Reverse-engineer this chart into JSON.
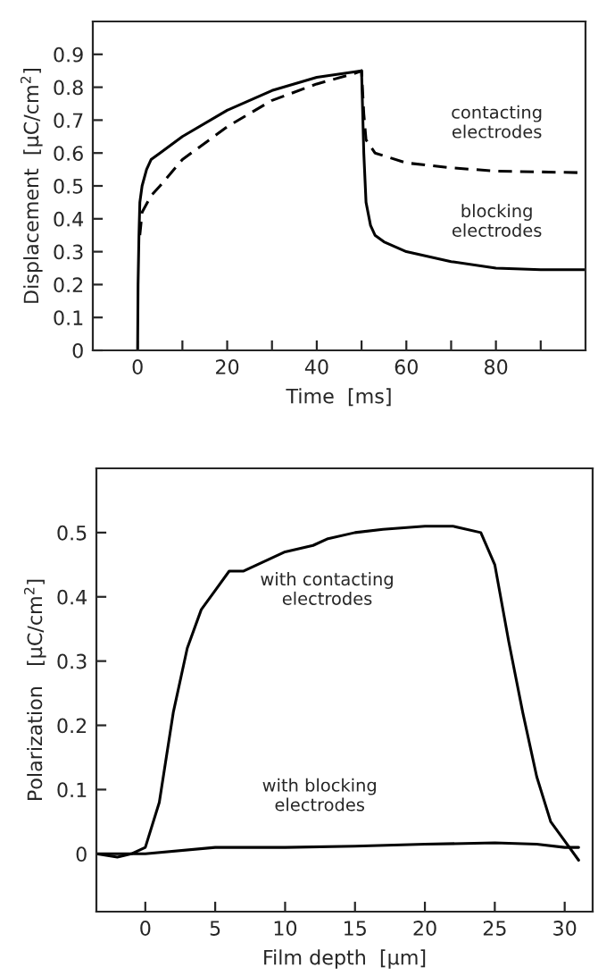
{
  "chart_data": [
    {
      "type": "line",
      "xlabel": "Time  [ms]",
      "ylabel": "Displacement  [μC/cm$^{2}$]",
      "xlim": [
        -10,
        100
      ],
      "ylim": [
        0,
        1.0
      ],
      "xticks": [
        0,
        {
          "value": 10,
          "label": null
        },
        20,
        {
          "value": 30,
          "label": null
        },
        40,
        {
          "value": 50,
          "label": null
        },
        60,
        {
          "value": 70,
          "label": null
        },
        80,
        {
          "value": 90,
          "label": null
        }
      ],
      "yticks": [
        0,
        0.1,
        0.2,
        0.3,
        0.4,
        0.5,
        0.6,
        0.7,
        0.8,
        0.9
      ],
      "grid": false,
      "legend": false,
      "series": [
        {
          "color": "#000000",
          "line_style": "solid",
          "x": [
            0,
            0.1,
            0.3,
            0.5,
            1,
            2,
            3,
            5,
            10,
            20,
            30,
            40,
            50,
            50.5,
            51,
            52,
            53,
            55,
            60,
            70,
            80,
            90,
            100
          ],
          "values": [
            0,
            0.2,
            0.35,
            0.45,
            0.5,
            0.55,
            0.58,
            0.6,
            0.65,
            0.73,
            0.79,
            0.83,
            0.85,
            0.6,
            0.45,
            0.38,
            0.35,
            0.33,
            0.3,
            0.27,
            0.25,
            0.245,
            0.245
          ]
        },
        {
          "color": "#000000",
          "line_style": "dashed",
          "x": [
            0.5,
            1,
            3,
            5,
            10,
            20,
            30,
            40,
            48,
            50,
            50.5,
            51,
            53,
            60,
            70,
            80,
            100
          ],
          "values": [
            0.35,
            0.42,
            0.47,
            0.5,
            0.58,
            0.68,
            0.76,
            0.81,
            0.84,
            0.85,
            0.72,
            0.64,
            0.6,
            0.57,
            0.555,
            0.545,
            0.54
          ]
        }
      ],
      "annotations": [
        "contacting\nelectrodes",
        "blocking\nelectrodes"
      ]
    },
    {
      "type": "line",
      "xlabel": "Film depth  [μm]",
      "ylabel": "Polarization   [μC/cm$^{2}$]",
      "xlim": [
        -3.5,
        32
      ],
      "ylim": [
        -0.09,
        0.6
      ],
      "xticks": [
        0,
        5,
        10,
        15,
        20,
        25,
        30
      ],
      "yticks": [
        0,
        0.1,
        0.2,
        0.3,
        0.4,
        0.5
      ],
      "grid": false,
      "legend": false,
      "series": [
        {
          "color": "#000000",
          "line_style": "solid",
          "x": [
            -3.5,
            -2,
            -1,
            0,
            1,
            2,
            3,
            4,
            5,
            6,
            7,
            8,
            10,
            12,
            13,
            15,
            17,
            20,
            22,
            24,
            25,
            26,
            27,
            28,
            29,
            30,
            31
          ],
          "values": [
            0,
            -0.005,
            0,
            0.01,
            0.08,
            0.22,
            0.32,
            0.38,
            0.41,
            0.44,
            0.44,
            0.45,
            0.47,
            0.48,
            0.49,
            0.5,
            0.505,
            0.51,
            0.51,
            0.5,
            0.45,
            0.33,
            0.22,
            0.12,
            0.05,
            0.02,
            -0.01
          ]
        },
        {
          "color": "#000000",
          "line_style": "solid",
          "x": [
            -3.5,
            0,
            5,
            10,
            15,
            20,
            25,
            28,
            30,
            31
          ],
          "values": [
            0,
            0,
            0.01,
            0.01,
            0.012,
            0.015,
            0.017,
            0.015,
            0.01,
            0.01
          ]
        }
      ],
      "annotations": [
        "with contacting\nelectrodes",
        "with blocking\nelectrodes"
      ]
    }
  ]
}
